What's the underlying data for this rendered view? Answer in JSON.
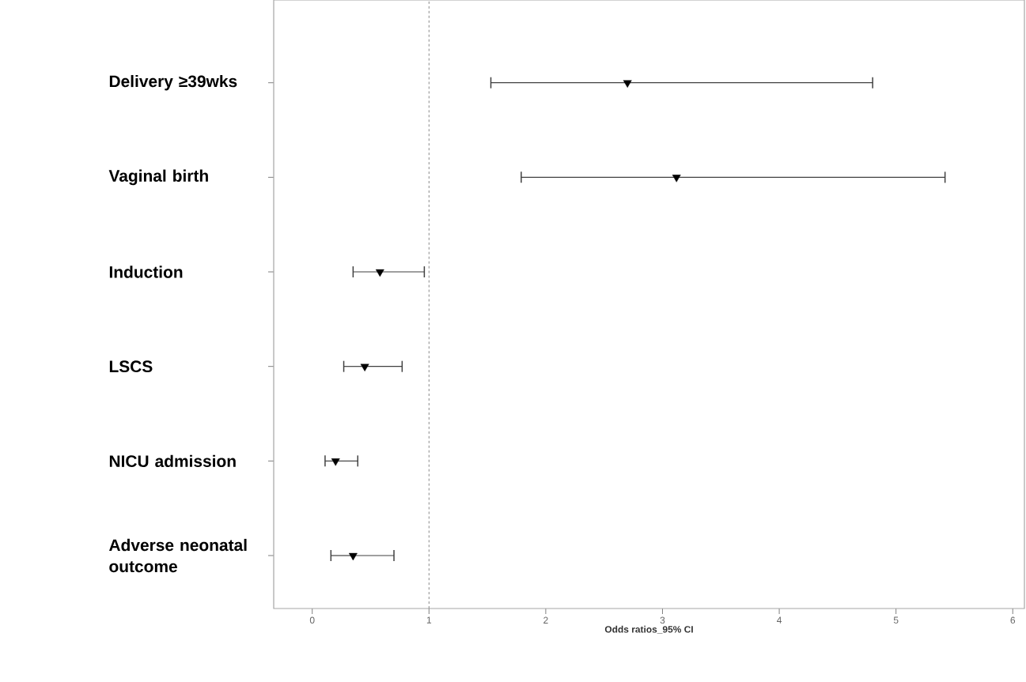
{
  "chart_data": {
    "type": "scatter",
    "orientation": "horizontal",
    "categories": [
      "Delivery ≥39wks",
      "Vaginal birth",
      "Induction",
      "LSCS",
      "NICU admission",
      "Adverse neonatal outcome"
    ],
    "values": [
      2.7,
      3.12,
      0.58,
      0.45,
      0.2,
      0.35
    ],
    "errors": [
      [
        1.53,
        4.8
      ],
      [
        1.79,
        5.42
      ],
      [
        0.35,
        0.96
      ],
      [
        0.27,
        0.77
      ],
      [
        0.11,
        0.39
      ],
      [
        0.16,
        0.7
      ]
    ],
    "color": "#000000",
    "marker": "triangle",
    "xlabel": "Odds ratios_95% CI",
    "xlim": [
      -0.33,
      6.1
    ],
    "xticks": [
      0,
      1,
      2,
      3,
      4,
      5,
      6
    ],
    "ref_lines": [
      {
        "axis": "x",
        "value": 1,
        "line_style": "dashed",
        "color": "#888888"
      }
    ],
    "grid": false
  }
}
